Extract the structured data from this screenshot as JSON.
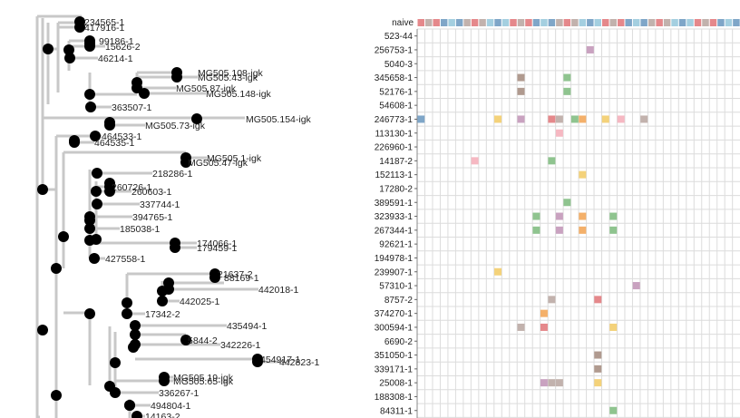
{
  "tree": {
    "leaves": [
      "234565-1",
      "417916-1",
      "99186-1",
      "15626-2",
      "46214-1",
      "MG505.108-igk",
      "MG505.43-igk",
      "MG505.87-igk",
      "MG505.148-igk",
      "363507-1",
      "MG505.73-igk",
      "MG505.154-igk",
      "464533-1",
      "464535-1",
      "MG505.1-igk",
      "MG505.47-igk",
      "218286-1",
      "260726-1",
      "260603-1",
      "337744-1",
      "394765-1",
      "185038-1",
      "174066-1",
      "179459-1",
      "427558-1",
      "21637-2",
      "88169-1",
      "442018-1",
      "442025-1",
      "17342-2",
      "435494-1",
      "5844-2",
      "342226-1",
      "454917-1",
      "442823-1",
      "MG505.19-igk",
      "MG505.65-igk",
      "336267-1",
      "494804-1",
      "14163-2"
    ]
  },
  "matrix": {
    "header_label": "naive",
    "rows": [
      "523-44",
      "256753-1",
      "5040-3",
      "345658-1",
      "52176-1",
      "54608-1",
      "246773-1",
      "113130-1",
      "226960-1",
      "14187-2",
      "152113-1",
      "17280-2",
      "389591-1",
      "323933-1",
      "267344-1",
      "92621-1",
      "194978-1",
      "239907-1",
      "57310-1",
      "8757-2",
      "374270-1",
      "300594-1",
      "6690-2",
      "351050-1",
      "339171-1",
      "25008-1",
      "188308-1",
      "84311-1"
    ],
    "palette": [
      "#e5888b",
      "#f4d27a",
      "#f6b8c2",
      "#7fa6c8",
      "#8fc48f",
      "#c9a2c0",
      "#c2b2ad",
      "#f4b06a",
      "#b09a8f",
      "#a4cfe0",
      "#d7c2b0",
      "#bfbfbf"
    ],
    "cells": [
      {
        "row": 1,
        "col": 22,
        "color": "#c9a2c0"
      },
      {
        "row": 3,
        "col": 13,
        "color": "#b09a8f"
      },
      {
        "row": 3,
        "col": 19,
        "color": "#8fc48f"
      },
      {
        "row": 4,
        "col": 13,
        "color": "#b09a8f"
      },
      {
        "row": 4,
        "col": 19,
        "color": "#8fc48f"
      },
      {
        "row": 6,
        "col": 0,
        "color": "#7fa6c8"
      },
      {
        "row": 6,
        "col": 10,
        "color": "#f4d27a"
      },
      {
        "row": 6,
        "col": 13,
        "color": "#c9a2c0"
      },
      {
        "row": 6,
        "col": 17,
        "color": "#e5888b"
      },
      {
        "row": 6,
        "col": 18,
        "color": "#c2b2ad"
      },
      {
        "row": 6,
        "col": 20,
        "color": "#8fc48f"
      },
      {
        "row": 6,
        "col": 21,
        "color": "#f4b06a"
      },
      {
        "row": 6,
        "col": 24,
        "color": "#f4d27a"
      },
      {
        "row": 6,
        "col": 26,
        "color": "#f6b8c2"
      },
      {
        "row": 6,
        "col": 29,
        "color": "#c2b2ad"
      },
      {
        "row": 7,
        "col": 18,
        "color": "#f6b8c2"
      },
      {
        "row": 9,
        "col": 7,
        "color": "#f6b8c2"
      },
      {
        "row": 9,
        "col": 17,
        "color": "#8fc48f"
      },
      {
        "row": 10,
        "col": 21,
        "color": "#f4d27a"
      },
      {
        "row": 12,
        "col": 19,
        "color": "#8fc48f"
      },
      {
        "row": 13,
        "col": 15,
        "color": "#8fc48f"
      },
      {
        "row": 13,
        "col": 18,
        "color": "#c9a2c0"
      },
      {
        "row": 13,
        "col": 21,
        "color": "#f4b06a"
      },
      {
        "row": 13,
        "col": 25,
        "color": "#8fc48f"
      },
      {
        "row": 14,
        "col": 15,
        "color": "#8fc48f"
      },
      {
        "row": 14,
        "col": 18,
        "color": "#c9a2c0"
      },
      {
        "row": 14,
        "col": 21,
        "color": "#f4b06a"
      },
      {
        "row": 14,
        "col": 25,
        "color": "#8fc48f"
      },
      {
        "row": 17,
        "col": 10,
        "color": "#f4d27a"
      },
      {
        "row": 18,
        "col": 28,
        "color": "#c9a2c0"
      },
      {
        "row": 19,
        "col": 17,
        "color": "#c2b2ad"
      },
      {
        "row": 19,
        "col": 23,
        "color": "#e5888b"
      },
      {
        "row": 20,
        "col": 16,
        "color": "#f4b06a"
      },
      {
        "row": 21,
        "col": 13,
        "color": "#c2b2ad"
      },
      {
        "row": 21,
        "col": 16,
        "color": "#e5888b"
      },
      {
        "row": 21,
        "col": 25,
        "color": "#f4d27a"
      },
      {
        "row": 23,
        "col": 23,
        "color": "#b09a8f"
      },
      {
        "row": 24,
        "col": 23,
        "color": "#b09a8f"
      },
      {
        "row": 25,
        "col": 16,
        "color": "#c9a2c0"
      },
      {
        "row": 25,
        "col": 17,
        "color": "#c2b2ad"
      },
      {
        "row": 25,
        "col": 18,
        "color": "#c2b2ad"
      },
      {
        "row": 25,
        "col": 23,
        "color": "#f4d27a"
      },
      {
        "row": 27,
        "col": 25,
        "color": "#8fc48f"
      }
    ]
  }
}
